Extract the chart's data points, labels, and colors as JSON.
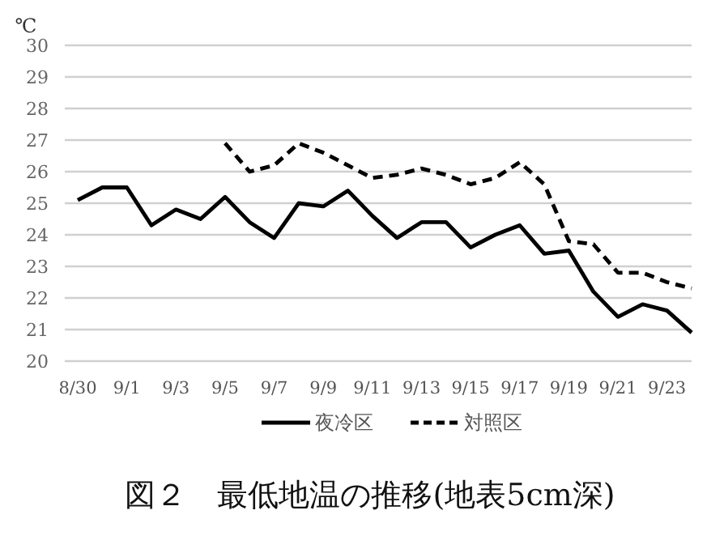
{
  "chart_data": {
    "type": "line",
    "title": "図２　最低地温の推移(地表5cm深)",
    "ylabel": "℃",
    "categories": [
      "8/30",
      null,
      "9/1",
      null,
      "9/3",
      null,
      "9/5",
      null,
      "9/7",
      null,
      "9/9",
      null,
      "9/11",
      null,
      "9/13",
      null,
      "9/15",
      null,
      "9/17",
      null,
      "9/19",
      null,
      "9/21",
      null,
      "9/23",
      null
    ],
    "series": [
      {
        "name": "夜冷区",
        "color": "#000000",
        "line_style": "solid",
        "values": [
          25.1,
          25.5,
          25.5,
          24.3,
          24.8,
          24.5,
          25.2,
          24.4,
          23.9,
          25.0,
          24.9,
          25.4,
          24.6,
          23.9,
          24.4,
          24.4,
          23.6,
          24.0,
          24.3,
          23.4,
          23.5,
          22.2,
          21.4,
          21.8,
          21.6,
          20.9
        ]
      },
      {
        "name": "対照区",
        "color": "#000000",
        "line_style": "dashed",
        "values": [
          null,
          null,
          null,
          null,
          null,
          null,
          26.9,
          26.0,
          26.2,
          26.9,
          26.6,
          26.2,
          25.8,
          25.9,
          26.1,
          25.9,
          25.6,
          25.8,
          26.3,
          25.6,
          23.8,
          23.7,
          22.8,
          22.8,
          22.5,
          22.3
        ]
      }
    ],
    "ylim": [
      20,
      30
    ],
    "yticks": [
      20,
      21,
      22,
      23,
      24,
      25,
      26,
      27,
      28,
      29,
      30
    ],
    "grid": "y",
    "legend": "bottom"
  }
}
